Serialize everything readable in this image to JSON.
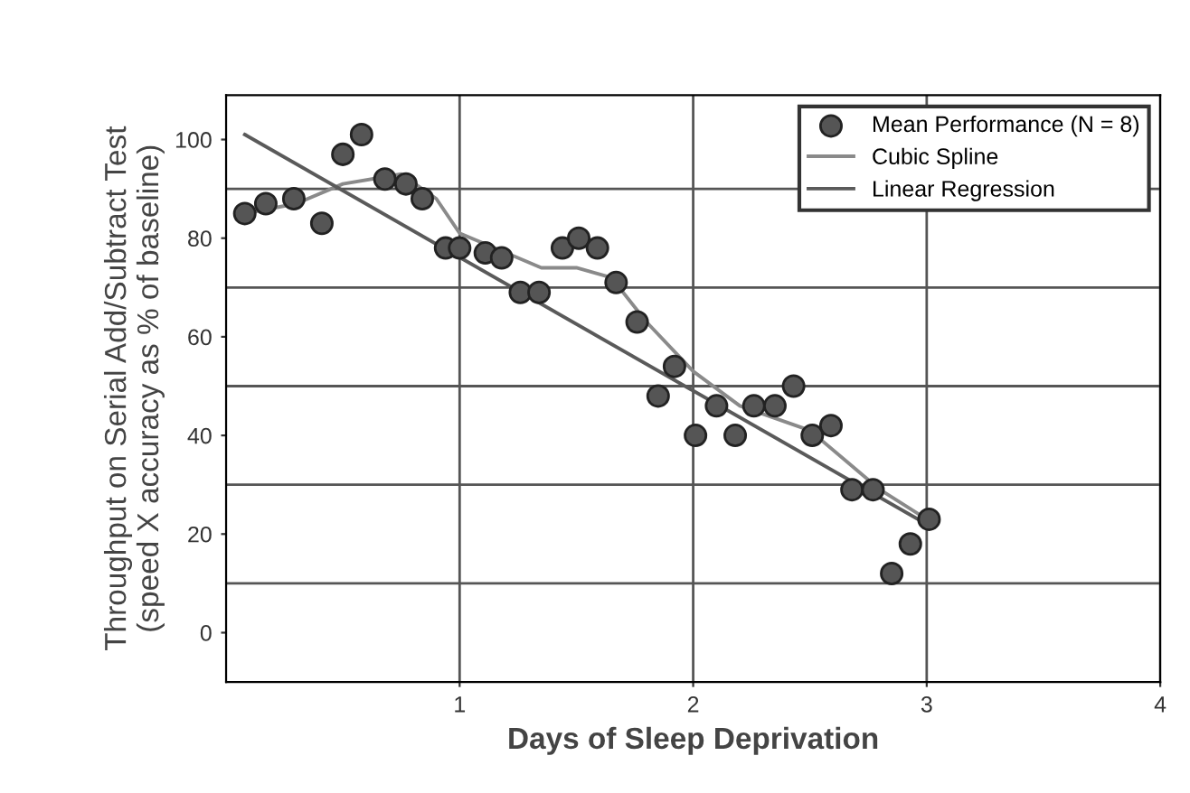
{
  "chart_data": {
    "type": "scatter",
    "xlabel": "Days of Sleep Deprivation",
    "ylabel": "Throughput on Serial Add/Subtract Test\n(speed X accuracy as % of baseline)",
    "xlim": [
      0,
      4
    ],
    "xticks": [
      1,
      2,
      3,
      4
    ],
    "ylim": [
      -10,
      109
    ],
    "yticks": [
      0,
      20,
      40,
      60,
      80,
      100
    ],
    "grid": "x",
    "legend": "top right",
    "ref_lines": [
      {
        "axis": "y",
        "value": 10,
        "color": "#555555"
      },
      {
        "axis": "y",
        "value": 30,
        "color": "#555555"
      },
      {
        "axis": "y",
        "value": 50,
        "color": "#555555"
      },
      {
        "axis": "y",
        "value": 70,
        "color": "#555555"
      },
      {
        "axis": "y",
        "value": 90,
        "color": "#555555"
      }
    ],
    "series": [
      {
        "name": "Mean Performance (N = 8)",
        "marker": "circle",
        "color": "#555555",
        "x": [
          0.08,
          0.17,
          0.29,
          0.41,
          0.5,
          0.58,
          0.68,
          0.77,
          0.84,
          0.94,
          1.0,
          1.11,
          1.18,
          1.26,
          1.34,
          1.44,
          1.51,
          1.59,
          1.67,
          1.76,
          1.85,
          1.92,
          2.01,
          2.1,
          2.18,
          2.26,
          2.35,
          2.43,
          2.51,
          2.59,
          2.68,
          2.77,
          2.85,
          2.93,
          3.01
        ],
        "values": [
          85,
          87,
          88,
          83,
          97,
          101,
          92,
          91,
          88,
          78,
          78,
          77,
          76,
          69,
          69,
          78,
          80,
          78,
          71,
          63,
          48,
          54,
          40,
          46,
          40,
          46,
          46,
          50,
          40,
          42,
          29,
          29,
          12,
          18,
          23
        ]
      },
      {
        "name": "Cubic Spline",
        "type": "line",
        "marker": "none",
        "line_style": "solid",
        "color": "#8a8a8a",
        "x": [
          0.08,
          0.3,
          0.5,
          0.75,
          0.9,
          1.0,
          1.2,
          1.35,
          1.5,
          1.65,
          1.8,
          2.0,
          2.2,
          2.5,
          2.8,
          3.0
        ],
        "values": [
          85,
          87,
          91,
          93,
          88,
          81,
          77,
          74,
          74,
          72,
          63,
          53,
          46,
          41,
          29,
          23
        ]
      },
      {
        "name": "Linear Regression",
        "type": "line",
        "marker": "none",
        "line_style": "solid",
        "color": "#5a5a5a",
        "x": [
          0.08,
          3.0
        ],
        "values": [
          101,
          22
        ]
      }
    ]
  }
}
